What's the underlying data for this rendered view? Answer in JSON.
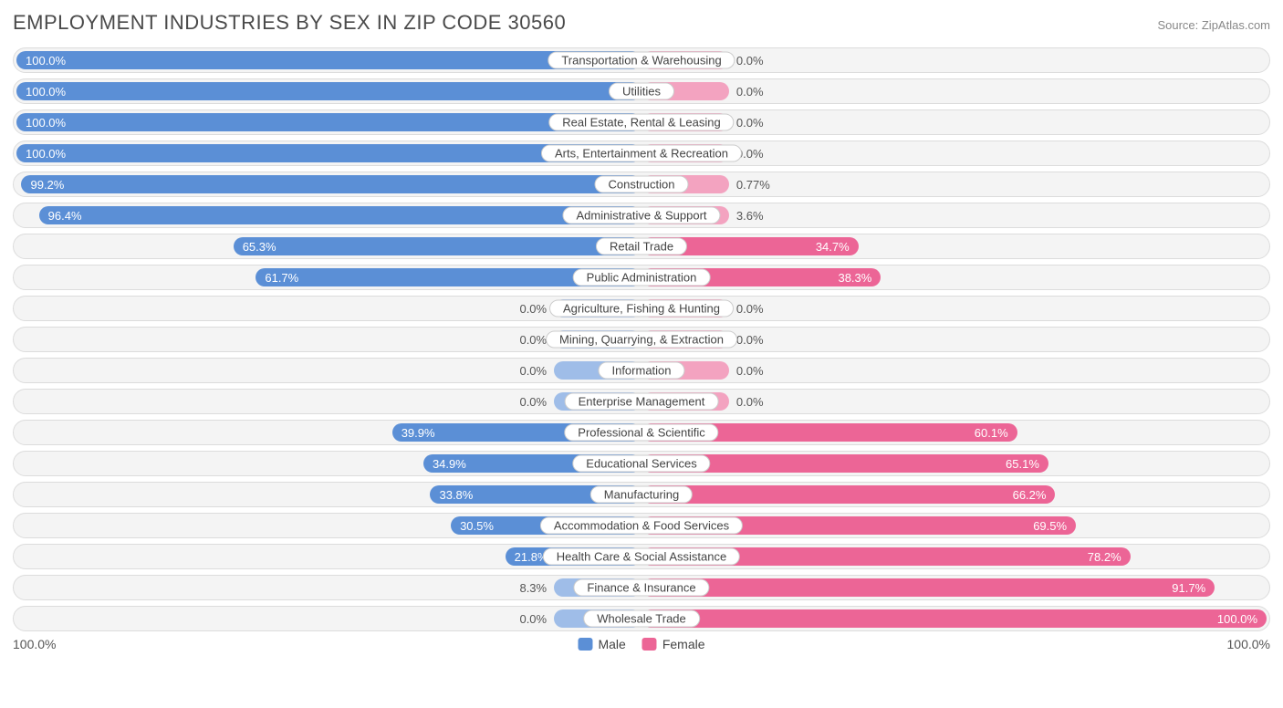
{
  "header": {
    "title": "EMPLOYMENT INDUSTRIES BY SEX IN ZIP CODE 30560",
    "source": "Source: ZipAtlas.com"
  },
  "chart": {
    "type": "diverging-bar",
    "axis_left": "100.0%",
    "axis_right": "100.0%",
    "min_bar_pct": 14,
    "colors": {
      "male_full": "#5b8fd6",
      "male_soft": "#9fbde8",
      "female_full": "#ec6596",
      "female_soft": "#f3a3c0",
      "row_bg": "#f4f4f4",
      "row_border": "#dcdcdc",
      "label_bg": "#ffffff",
      "label_border": "#cccccc",
      "text_in_bar": "#ffffff",
      "text_outside": "#555555"
    },
    "legend": [
      {
        "label": "Male",
        "color": "#5b8fd6"
      },
      {
        "label": "Female",
        "color": "#ec6596"
      }
    ],
    "rows": [
      {
        "label": "Transportation & Warehousing",
        "male": 100.0,
        "female": 0.0,
        "female_min": true
      },
      {
        "label": "Utilities",
        "male": 100.0,
        "female": 0.0,
        "female_min": true
      },
      {
        "label": "Real Estate, Rental & Leasing",
        "male": 100.0,
        "female": 0.0,
        "female_min": true
      },
      {
        "label": "Arts, Entertainment & Recreation",
        "male": 100.0,
        "female": 0.0,
        "female_min": true
      },
      {
        "label": "Construction",
        "male": 99.2,
        "female": 0.77,
        "female_min": true
      },
      {
        "label": "Administrative & Support",
        "male": 96.4,
        "female": 3.6,
        "female_min": true
      },
      {
        "label": "Retail Trade",
        "male": 65.3,
        "female": 34.7
      },
      {
        "label": "Public Administration",
        "male": 61.7,
        "female": 38.3
      },
      {
        "label": "Agriculture, Fishing & Hunting",
        "male": 0.0,
        "female": 0.0,
        "male_min": true,
        "female_min": true
      },
      {
        "label": "Mining, Quarrying, & Extraction",
        "male": 0.0,
        "female": 0.0,
        "male_min": true,
        "female_min": true
      },
      {
        "label": "Information",
        "male": 0.0,
        "female": 0.0,
        "male_min": true,
        "female_min": true
      },
      {
        "label": "Enterprise Management",
        "male": 0.0,
        "female": 0.0,
        "male_min": true,
        "female_min": true
      },
      {
        "label": "Professional & Scientific",
        "male": 39.9,
        "female": 60.1
      },
      {
        "label": "Educational Services",
        "male": 34.9,
        "female": 65.1
      },
      {
        "label": "Manufacturing",
        "male": 33.8,
        "female": 66.2
      },
      {
        "label": "Accommodation & Food Services",
        "male": 30.5,
        "female": 69.5
      },
      {
        "label": "Health Care & Social Assistance",
        "male": 21.8,
        "female": 78.2
      },
      {
        "label": "Finance & Insurance",
        "male": 8.3,
        "female": 91.7,
        "male_min": true
      },
      {
        "label": "Wholesale Trade",
        "male": 0.0,
        "female": 100.0,
        "male_min": true
      }
    ]
  }
}
